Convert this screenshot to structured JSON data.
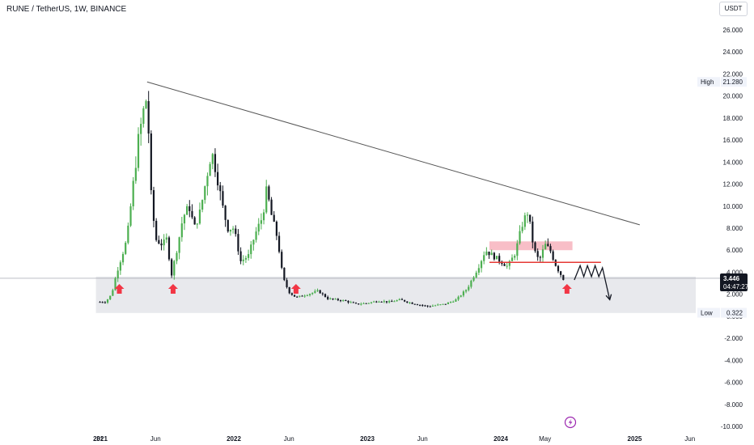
{
  "header": {
    "title": "RUNE / TetherUS, 1W, BINANCE",
    "currency": "USDT"
  },
  "price_axis": {
    "ticks": [
      "26.000",
      "24.000",
      "22.000",
      "20.000",
      "18.000",
      "16.000",
      "14.000",
      "12.000",
      "10.000",
      "8.000",
      "6.000",
      "4.000",
      "2.000",
      "0.000",
      "-2.000",
      "-4.000",
      "-6.000",
      "-8.000",
      "-10.000"
    ],
    "high_label": "High",
    "high_value": "21.280",
    "low_label": "Low",
    "low_value": "0.322",
    "last_price": "3.446",
    "countdown": "04:47:27"
  },
  "time_axis": {
    "labels": [
      {
        "text": "31",
        "bold": false
      },
      {
        "text": "2021",
        "bold": true
      },
      {
        "text": "Jun",
        "bold": false
      },
      {
        "text": "2022",
        "bold": true
      },
      {
        "text": "Jun",
        "bold": false
      },
      {
        "text": "2023",
        "bold": true
      },
      {
        "text": "Jun",
        "bold": false
      },
      {
        "text": "2024",
        "bold": true
      },
      {
        "text": "May",
        "bold": false
      },
      {
        "text": "2025",
        "bold": true
      },
      {
        "text": "Jun",
        "bold": false
      }
    ]
  },
  "colors": {
    "up": "#4caf50",
    "down": "#131722",
    "support_zone": "#e8e9ed",
    "resistance_zone": "#f7b3bd",
    "level_line": "#e53935",
    "arrow": "#f23645",
    "trendline": "#555555"
  },
  "chart_data": {
    "type": "candlestick",
    "symbol": "RUNE/USDT",
    "interval": "1W",
    "exchange": "BINANCE",
    "ylim": [
      -10,
      27
    ],
    "high": 21.28,
    "low": 0.322,
    "last": 3.446,
    "annotations": {
      "trendline": {
        "from": [
          "2021-05-09",
          21.28
        ],
        "to": [
          "2025-01-15",
          8.3
        ]
      },
      "support_zone": {
        "from": "2020-12-20",
        "to": "2025-12-31",
        "y_range": [
          0.3,
          3.6
        ]
      },
      "resistance_zone": {
        "from": "2023-12-01",
        "to": "2024-07-15",
        "y_range": [
          6.0,
          6.8
        ]
      },
      "level_line": {
        "from": "2023-12-01",
        "to": "2024-10-01",
        "y": 4.9
      },
      "arrows_up_at": [
        "2021-02-22",
        "2021-07-19",
        "2022-06-20",
        "2024-06-30"
      ],
      "projected_path": [
        [
          "2024-07-20",
          3.3
        ],
        [
          "2024-08-05",
          4.6
        ],
        [
          "2024-08-15",
          3.6
        ],
        [
          "2024-08-25",
          4.6
        ],
        [
          "2024-09-05",
          3.6
        ],
        [
          "2024-09-15",
          4.6
        ],
        [
          "2024-09-25",
          3.6
        ],
        [
          "2024-10-05",
          4.4
        ],
        [
          "2024-10-25",
          1.5
        ]
      ]
    },
    "close_path": [
      [
        "2020-12-31",
        1.3
      ],
      [
        "2021-01-15",
        1.3
      ],
      [
        "2021-02-01",
        2.0
      ],
      [
        "2021-02-15",
        4.0
      ],
      [
        "2021-03-01",
        5.5
      ],
      [
        "2021-03-15",
        7.0
      ],
      [
        "2021-04-01",
        12.0
      ],
      [
        "2021-04-15",
        16.0
      ],
      [
        "2021-05-01",
        19.0
      ],
      [
        "2021-05-09",
        20.0
      ],
      [
        "2021-05-20",
        11.0
      ],
      [
        "2021-06-01",
        7.0
      ],
      [
        "2021-06-20",
        6.5
      ],
      [
        "2021-07-01",
        7.0
      ],
      [
        "2021-07-15",
        3.8
      ],
      [
        "2021-08-01",
        6.5
      ],
      [
        "2021-08-15",
        9.0
      ],
      [
        "2021-09-01",
        10.0
      ],
      [
        "2021-09-15",
        8.0
      ],
      [
        "2021-10-01",
        9.5
      ],
      [
        "2021-10-15",
        12.0
      ],
      [
        "2021-11-01",
        15.0
      ],
      [
        "2021-11-15",
        13.0
      ],
      [
        "2021-12-01",
        10.0
      ],
      [
        "2021-12-15",
        8.0
      ],
      [
        "2022-01-01",
        8.0
      ],
      [
        "2022-01-20",
        5.0
      ],
      [
        "2022-02-10",
        5.5
      ],
      [
        "2022-03-01",
        7.5
      ],
      [
        "2022-03-20",
        9.0
      ],
      [
        "2022-04-01",
        11.5
      ],
      [
        "2022-04-15",
        9.0
      ],
      [
        "2022-05-01",
        7.0
      ],
      [
        "2022-05-15",
        3.5
      ],
      [
        "2022-06-01",
        2.2
      ],
      [
        "2022-06-20",
        1.7
      ],
      [
        "2022-08-01",
        2.1
      ],
      [
        "2022-08-20",
        2.3
      ],
      [
        "2022-09-15",
        1.6
      ],
      [
        "2022-11-01",
        1.4
      ],
      [
        "2022-12-01",
        1.1
      ],
      [
        "2023-01-01",
        1.2
      ],
      [
        "2023-02-01",
        1.4
      ],
      [
        "2023-03-01",
        1.3
      ],
      [
        "2023-04-01",
        1.5
      ],
      [
        "2023-05-01",
        1.2
      ],
      [
        "2023-06-15",
        0.9
      ],
      [
        "2023-08-01",
        1.1
      ],
      [
        "2023-09-01",
        1.5
      ],
      [
        "2023-10-01",
        2.5
      ],
      [
        "2023-11-01",
        4.5
      ],
      [
        "2023-11-20",
        6.0
      ],
      [
        "2023-12-10",
        5.5
      ],
      [
        "2024-01-01",
        5.0
      ],
      [
        "2024-01-20",
        4.5
      ],
      [
        "2024-02-10",
        5.8
      ],
      [
        "2024-03-01",
        8.5
      ],
      [
        "2024-03-15",
        9.5
      ],
      [
        "2024-04-01",
        6.0
      ],
      [
        "2024-04-15",
        5.0
      ],
      [
        "2024-05-01",
        6.5
      ],
      [
        "2024-05-15",
        6.0
      ],
      [
        "2024-06-01",
        4.5
      ],
      [
        "2024-06-20",
        3.4
      ]
    ]
  }
}
